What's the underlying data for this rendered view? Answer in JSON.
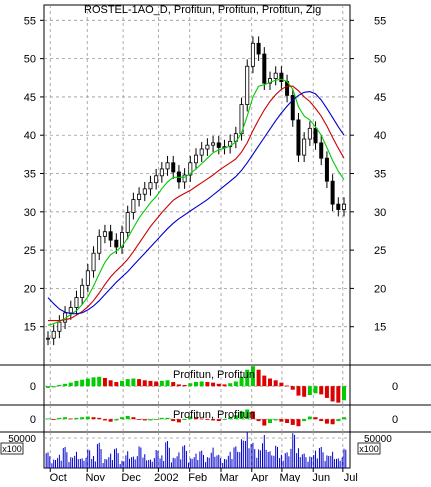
{
  "chart_data": [
    {
      "type": "line",
      "panel": "price",
      "title": "ROSTEL-1AO_D, Profitun, Profitun, Profitun, Zig",
      "y_ticks": [
        15,
        20,
        25,
        30,
        35,
        40,
        45,
        50,
        55
      ],
      "ylim": [
        10,
        57
      ],
      "x_tick_labels": [
        "Oct",
        "Nov",
        "Dec",
        "2002",
        "Feb",
        "Mar",
        "Apr",
        "May",
        "Jun",
        "Jul"
      ],
      "grid": true,
      "series": [
        {
          "color": "#000000",
          "values": [
            13.5,
            14.4,
            15.6,
            16.8,
            17.5,
            18.8,
            20.4,
            22.3,
            24.6,
            26.8,
            27.4,
            26.3,
            25.4,
            27.3,
            29.9,
            31.6,
            32.3,
            33.0,
            33.8,
            34.7,
            35.6,
            36.4,
            35.2,
            33.9,
            34.8,
            36.4,
            37.4,
            38.2,
            38.7,
            39.0,
            38.4,
            38.5,
            39.2,
            40.2,
            44.0,
            49.0,
            52.0,
            50.6,
            46.8,
            47.4,
            48.1,
            47.0,
            45.2,
            42.0,
            37.4,
            39.5,
            40.9,
            39.0,
            37.0,
            34.0,
            31.0,
            30.3,
            31.0
          ]
        },
        {
          "color": "#00cc00",
          "values": [
            15.2,
            15.4,
            15.7,
            16.1,
            16.6,
            17.1,
            17.9,
            18.9,
            20.3,
            21.9,
            23.4,
            24.4,
            24.9,
            25.5,
            26.6,
            27.9,
            29.2,
            30.2,
            31.2,
            32.0,
            33.0,
            33.9,
            34.5,
            34.5,
            34.5,
            35.0,
            35.6,
            36.3,
            37.0,
            37.7,
            38.1,
            38.3,
            38.6,
            39.1,
            40.3,
            42.5,
            45.0,
            46.4,
            46.6,
            46.9,
            47.2,
            47.3,
            47.0,
            46.0,
            43.7,
            42.5,
            42.0,
            41.1,
            40.0,
            38.4,
            36.7,
            35.3,
            34.2
          ]
        },
        {
          "color": "#cc0000",
          "values": [
            15.8,
            15.8,
            15.8,
            15.9,
            16.1,
            16.5,
            17.0,
            17.6,
            18.4,
            19.4,
            20.5,
            21.5,
            22.3,
            23.0,
            23.8,
            24.8,
            25.9,
            27.0,
            28.1,
            29.0,
            29.9,
            30.7,
            31.5,
            32.0,
            32.4,
            32.8,
            33.3,
            33.8,
            34.3,
            34.8,
            35.4,
            35.9,
            36.4,
            36.9,
            37.8,
            39.0,
            40.6,
            42.0,
            43.3,
            44.4,
            45.3,
            46.0,
            46.4,
            46.4,
            45.8,
            45.0,
            44.4,
            43.5,
            42.5,
            41.2,
            39.7,
            38.3,
            37.0
          ]
        },
        {
          "color": "#0000cc",
          "values": [
            18.8,
            18.0,
            17.3,
            16.9,
            16.7,
            16.7,
            16.8,
            17.2,
            17.7,
            18.4,
            19.2,
            20.0,
            20.8,
            21.5,
            22.2,
            23.0,
            23.8,
            24.6,
            25.4,
            26.2,
            27.0,
            27.8,
            28.5,
            29.1,
            29.6,
            30.1,
            30.6,
            31.1,
            31.6,
            32.2,
            32.8,
            33.4,
            34.0,
            34.6,
            35.4,
            36.4,
            37.5,
            38.6,
            39.7,
            40.8,
            41.9,
            42.9,
            43.8,
            44.6,
            45.2,
            45.6,
            45.7,
            45.4,
            44.6,
            43.5,
            42.3,
            41.1,
            40.0
          ]
        }
      ]
    },
    {
      "type": "bar",
      "panel": "oscillator",
      "label": "Profitun, Profitun",
      "y_ticks": [
        0
      ],
      "ylim": [
        -3.2,
        3.6
      ],
      "values": [
        -0.3,
        -0.2,
        0.2,
        0.4,
        0.6,
        0.9,
        1.1,
        1.3,
        1.5,
        1.6,
        1.4,
        1.0,
        0.7,
        0.9,
        1.2,
        1.3,
        1.2,
        1.0,
        0.9,
        0.8,
        0.9,
        1.0,
        0.7,
        0.3,
        0.2,
        0.5,
        0.7,
        0.8,
        0.7,
        0.6,
        0.4,
        0.3,
        0.5,
        0.8,
        1.6,
        2.8,
        3.4,
        2.8,
        1.8,
        1.3,
        1.0,
        0.6,
        0.1,
        -0.6,
        -1.6,
        -1.8,
        -1.5,
        -1.2,
        -1.4,
        -2.0,
        -2.6,
        -2.8,
        -2.4
      ],
      "up_color": "#00cc00",
      "down_color": "#dd0000"
    },
    {
      "type": "bar",
      "panel": "oscillator",
      "label": "Profitun, Profitun",
      "y_ticks": [
        0
      ],
      "ylim": [
        -2.0,
        2.2
      ],
      "values": [
        0.1,
        -0.1,
        0.2,
        0.3,
        0.1,
        0.2,
        0.3,
        0.4,
        0.3,
        0.2,
        -0.2,
        -0.4,
        -0.2,
        0.3,
        0.5,
        0.3,
        -0.1,
        -0.2,
        -0.2,
        -0.1,
        0.2,
        0.2,
        -0.3,
        -0.5,
        -0.1,
        0.4,
        0.3,
        0.1,
        -0.1,
        -0.2,
        -0.3,
        0.0,
        0.3,
        0.6,
        1.2,
        1.5,
        1.2,
        -0.3,
        -1.0,
        -0.6,
        -0.2,
        -0.4,
        -0.6,
        -0.9,
        -1.1,
        -0.3,
        0.4,
        0.3,
        -0.3,
        -0.7,
        -0.8,
        -0.3,
        0.3
      ],
      "up_color": "#00cc00",
      "down_color": "#dd0000"
    },
    {
      "type": "bar",
      "panel": "volume",
      "y_tick_label": "50000",
      "multiplier_label": "x100",
      "ylim": [
        0,
        60000
      ],
      "color": "#0000cc",
      "values": [
        26000,
        14000,
        22000,
        35000,
        18000,
        27000,
        16000,
        31000,
        20000,
        42000,
        15000,
        24000,
        33000,
        12000,
        28000,
        19000,
        36000,
        23000,
        14000,
        30000,
        21000,
        45000,
        17000,
        26000,
        38000,
        16000,
        24000,
        29000,
        18000,
        34000,
        22000,
        15000,
        27000,
        36000,
        48000,
        60000,
        42000,
        31000,
        55000,
        28000,
        37000,
        22000,
        26000,
        58000,
        33000,
        24000,
        19000,
        29000,
        35000,
        21000,
        27000,
        16000,
        32000
      ]
    }
  ]
}
